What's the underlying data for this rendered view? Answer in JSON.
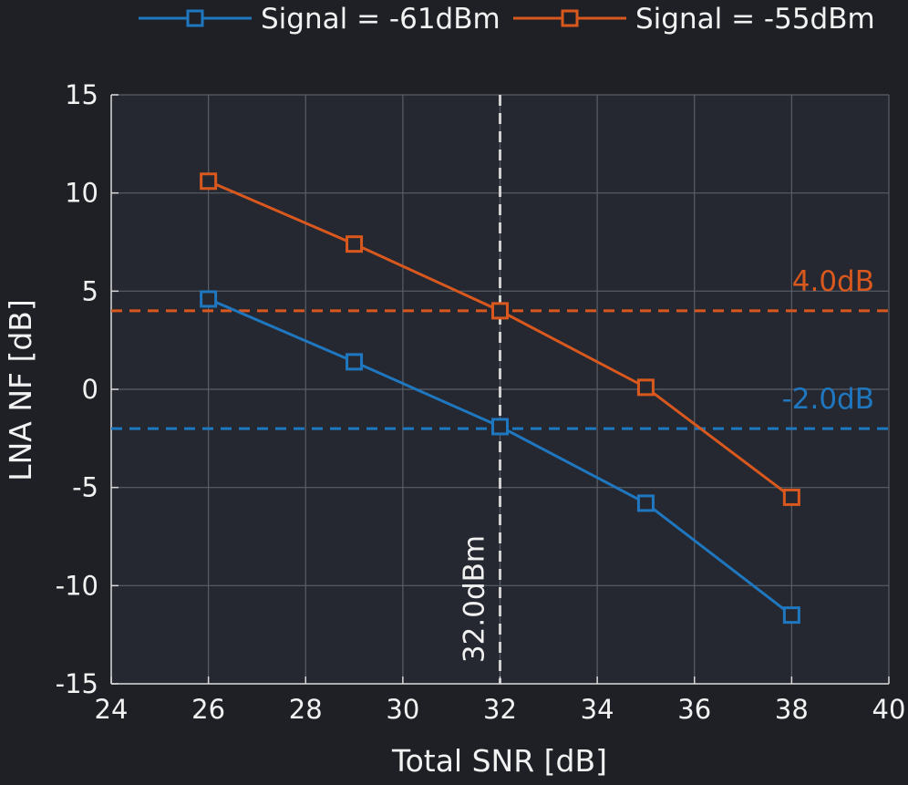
{
  "chart_data": {
    "type": "line",
    "xlabel": "Total SNR [dB]",
    "ylabel": "LNA NF [dB]",
    "xlim": [
      24,
      40
    ],
    "ylim": [
      -15,
      15
    ],
    "xticks": [
      24,
      26,
      28,
      30,
      32,
      34,
      36,
      38,
      40
    ],
    "yticks": [
      -15,
      -10,
      -5,
      0,
      5,
      10,
      15
    ],
    "xtick_labels": [
      "24",
      "26",
      "28",
      "30",
      "32",
      "34",
      "36",
      "38",
      "40"
    ],
    "ytick_labels": [
      "-15",
      "-10",
      "-5",
      "0",
      "5",
      "10",
      "15"
    ],
    "grid": true,
    "legend_position": "top",
    "x": [
      26,
      29,
      32,
      35,
      38
    ],
    "series": [
      {
        "name": "Signal = -61dBm",
        "color": "#1f77c0",
        "marker": "square",
        "values": [
          4.6,
          1.4,
          -1.9,
          -5.8,
          -11.5
        ]
      },
      {
        "name": "Signal = -55dBm",
        "color": "#d9581e",
        "marker": "square",
        "values": [
          10.6,
          7.4,
          4.0,
          0.1,
          -5.5
        ]
      }
    ],
    "reference_lines": [
      {
        "orientation": "horizontal",
        "value": 4.0,
        "label": "4.0dB",
        "color": "#d9581e",
        "style": "dashed"
      },
      {
        "orientation": "horizontal",
        "value": -2.0,
        "label": "-2.0dB",
        "color": "#1f77c0",
        "style": "dashed"
      },
      {
        "orientation": "vertical",
        "value": 32,
        "label": "32.0dBm",
        "color": "#d0d0d0",
        "style": "dashed"
      }
    ],
    "colors": {
      "background": "#1e2026",
      "plot_area": "#252830",
      "grid": "#5a5e66",
      "axis": "#d8d8d8",
      "text": "#f2f2f2"
    }
  }
}
